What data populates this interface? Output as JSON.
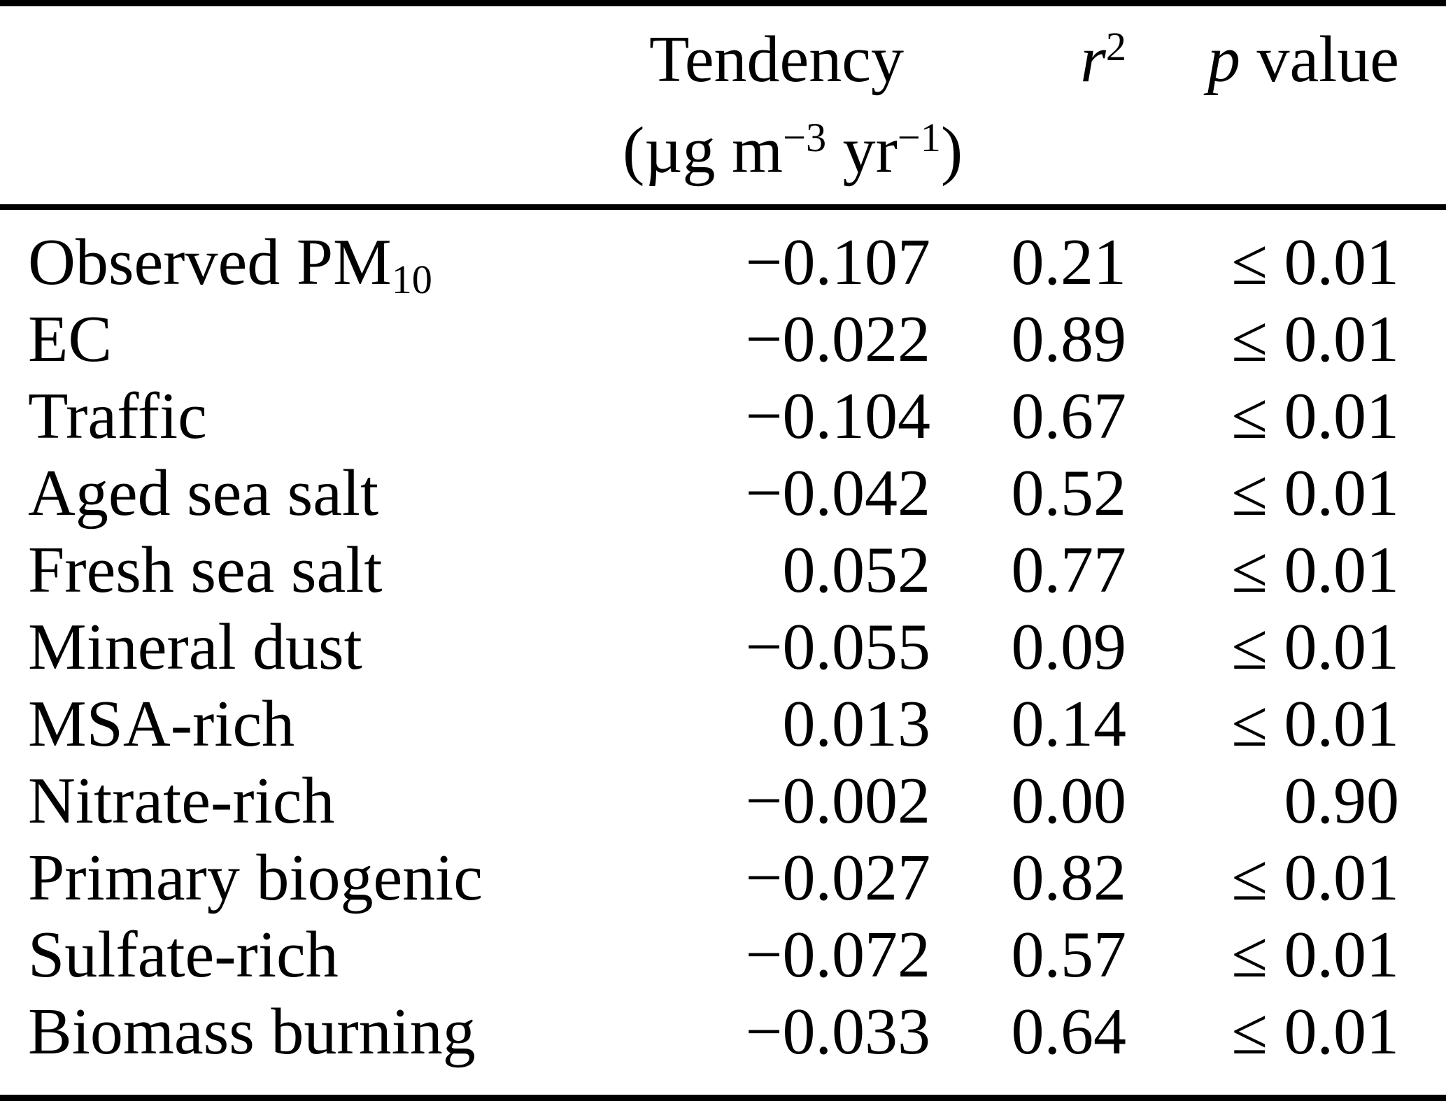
{
  "table": {
    "header": {
      "tendency_label": "Tendency",
      "tendency_unit": {
        "prefix": "(µg m",
        "sup_m": "−3",
        "mid": " yr",
        "sup_yr": "−1",
        "suffix": ")"
      },
      "r2": {
        "base": "r",
        "sup": "2"
      },
      "p": {
        "italic": "p",
        "rest": " value"
      }
    },
    "rows": [
      {
        "label": "Observed PM",
        "label_sub": "10",
        "tendency": "−0.107",
        "r2": "0.21",
        "p": "≤ 0.01"
      },
      {
        "label": "EC",
        "tendency": "−0.022",
        "r2": "0.89",
        "p": "≤ 0.01"
      },
      {
        "label": "Traffic",
        "tendency": "−0.104",
        "r2": "0.67",
        "p": "≤ 0.01"
      },
      {
        "label": "Aged sea salt",
        "tendency": "−0.042",
        "r2": "0.52",
        "p": "≤ 0.01"
      },
      {
        "label": "Fresh sea salt",
        "tendency": "0.052",
        "r2": "0.77",
        "p": "≤ 0.01"
      },
      {
        "label": "Mineral dust",
        "tendency": "−0.055",
        "r2": "0.09",
        "p": "≤ 0.01"
      },
      {
        "label": "MSA-rich",
        "tendency": "0.013",
        "r2": "0.14",
        "p": "≤ 0.01"
      },
      {
        "label": "Nitrate-rich",
        "tendency": "−0.002",
        "r2": "0.00",
        "p": "0.90"
      },
      {
        "label": "Primary biogenic",
        "tendency": "−0.027",
        "r2": "0.82",
        "p": "≤ 0.01"
      },
      {
        "label": "Sulfate-rich",
        "tendency": "−0.072",
        "r2": "0.57",
        "p": "≤ 0.01"
      },
      {
        "label": "Biomass burning",
        "tendency": "−0.033",
        "r2": "0.64",
        "p": "≤ 0.01"
      }
    ],
    "colors": {
      "text": "#000000",
      "background": "#ffffff",
      "rule": "#000000"
    }
  }
}
